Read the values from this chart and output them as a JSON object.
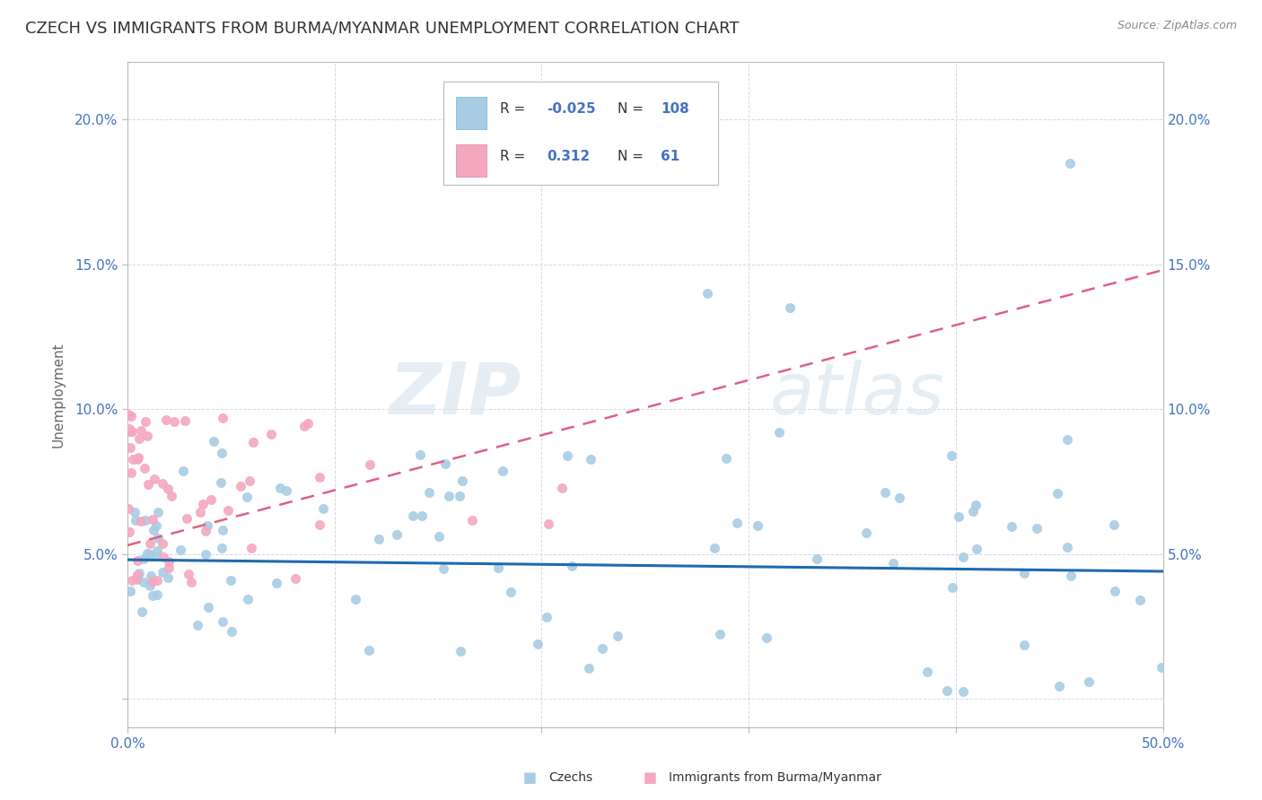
{
  "title": "CZECH VS IMMIGRANTS FROM BURMA/MYANMAR UNEMPLOYMENT CORRELATION CHART",
  "source": "Source: ZipAtlas.com",
  "ylabel": "Unemployment",
  "watermark": "ZIPatlas",
  "xlim": [
    0.0,
    0.5
  ],
  "ylim": [
    -0.01,
    0.22
  ],
  "xticks": [
    0.0,
    0.1,
    0.2,
    0.3,
    0.4,
    0.5
  ],
  "yticks": [
    0.0,
    0.05,
    0.1,
    0.15,
    0.2
  ],
  "xticklabels": [
    "0.0%",
    "",
    "",
    "",
    "",
    "50.0%"
  ],
  "yticklabels": [
    "",
    "5.0%",
    "10.0%",
    "15.0%",
    "20.0%"
  ],
  "color_czech": "#a8cce4",
  "color_burma": "#f4a8c0",
  "color_czech_line": "#1e6bb0",
  "color_burma_line": "#e06080",
  "background_color": "#ffffff",
  "title_fontsize": 13,
  "source_fontsize": 9,
  "tick_color": "#4472c4",
  "axis_label_color": "#666666"
}
